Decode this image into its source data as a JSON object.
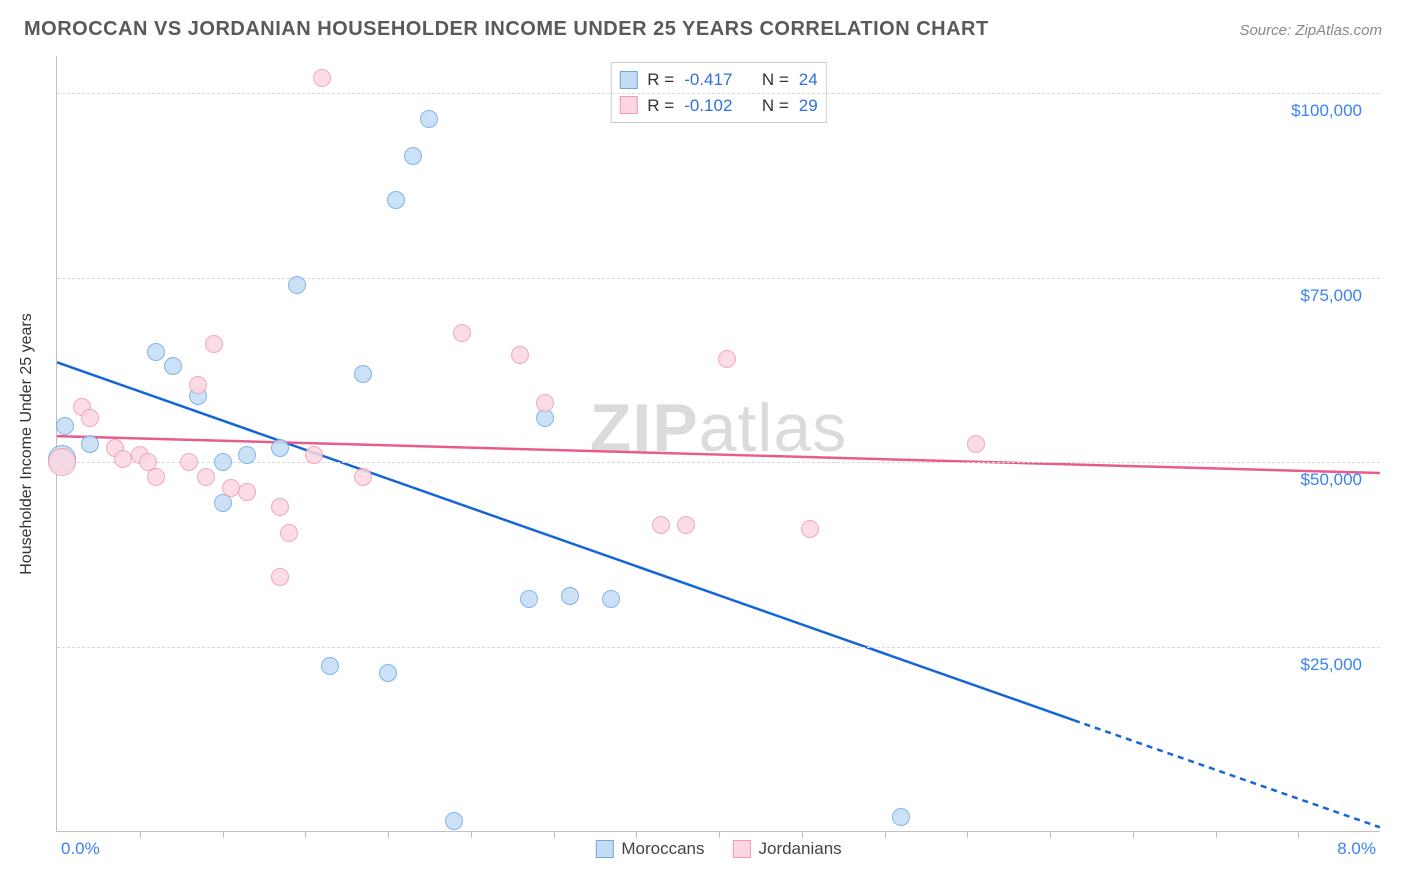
{
  "title": "MOROCCAN VS JORDANIAN HOUSEHOLDER INCOME UNDER 25 YEARS CORRELATION CHART",
  "source": "Source: ZipAtlas.com",
  "y_axis_title": "Householder Income Under 25 years",
  "watermark_bold": "ZIP",
  "watermark_light": "atlas",
  "chart": {
    "type": "scatter",
    "xlim": [
      0,
      8
    ],
    "ylim": [
      0,
      105000
    ],
    "x_ticks": [
      0.5,
      1.0,
      1.5,
      2.0,
      2.5,
      3.0,
      3.5,
      4.0,
      4.5,
      5.0,
      5.5,
      6.0,
      6.5,
      7.0,
      7.5
    ],
    "y_grid": [
      25000,
      50000,
      75000,
      100000
    ],
    "y_tick_labels": [
      "$25,000",
      "$50,000",
      "$75,000",
      "$100,000"
    ],
    "x_min_label": "0.0%",
    "x_max_label": "8.0%",
    "background_color": "#ffffff",
    "grid_color": "#d9d9d9",
    "axis_color": "#bfbfbf",
    "tick_label_color": "#3b82f6",
    "marker_radius": 9,
    "marker_radius_large": 14,
    "series": [
      {
        "name": "Moroccans",
        "fill": "#c3dcf4",
        "stroke": "#6fa8e8",
        "trend_color": "#1466d6",
        "trend_width": 2.5,
        "trend_start": [
          0.0,
          63500
        ],
        "trend_solid_end": [
          6.15,
          15000
        ],
        "trend_dash_end": [
          8.0,
          500
        ],
        "R": "-0.417",
        "N": "24",
        "points": [
          {
            "x": 0.03,
            "y": 50500,
            "r": 14
          },
          {
            "x": 0.05,
            "y": 55000
          },
          {
            "x": 0.2,
            "y": 52500
          },
          {
            "x": 0.6,
            "y": 65000
          },
          {
            "x": 0.7,
            "y": 63000
          },
          {
            "x": 0.85,
            "y": 59000
          },
          {
            "x": 1.0,
            "y": 50000
          },
          {
            "x": 1.0,
            "y": 44500
          },
          {
            "x": 1.15,
            "y": 51000
          },
          {
            "x": 1.35,
            "y": 52000
          },
          {
            "x": 1.45,
            "y": 74000
          },
          {
            "x": 1.65,
            "y": 22500
          },
          {
            "x": 2.0,
            "y": 21500
          },
          {
            "x": 1.85,
            "y": 62000
          },
          {
            "x": 2.05,
            "y": 85500
          },
          {
            "x": 2.15,
            "y": 91500
          },
          {
            "x": 2.25,
            "y": 96500
          },
          {
            "x": 2.4,
            "y": 1500
          },
          {
            "x": 2.95,
            "y": 56000
          },
          {
            "x": 2.85,
            "y": 31500
          },
          {
            "x": 3.1,
            "y": 32000
          },
          {
            "x": 3.35,
            "y": 31500
          },
          {
            "x": 5.1,
            "y": 2000
          }
        ]
      },
      {
        "name": "Jordanians",
        "fill": "#fcd7e1",
        "stroke": "#f19ab3",
        "trend_color": "#e85b8d",
        "trend_width": 2.5,
        "trend_start": [
          0.0,
          53500
        ],
        "trend_solid_end": [
          8.0,
          48500
        ],
        "R": "-0.102",
        "N": "29",
        "points": [
          {
            "x": 0.03,
            "y": 50000,
            "r": 14
          },
          {
            "x": 0.15,
            "y": 57500
          },
          {
            "x": 0.2,
            "y": 56000
          },
          {
            "x": 0.35,
            "y": 52000
          },
          {
            "x": 0.4,
            "y": 50500
          },
          {
            "x": 0.5,
            "y": 51000
          },
          {
            "x": 0.55,
            "y": 50000
          },
          {
            "x": 0.6,
            "y": 48000
          },
          {
            "x": 0.8,
            "y": 50000
          },
          {
            "x": 0.85,
            "y": 60500
          },
          {
            "x": 0.9,
            "y": 48000
          },
          {
            "x": 0.95,
            "y": 66000
          },
          {
            "x": 1.05,
            "y": 46500
          },
          {
            "x": 1.15,
            "y": 46000
          },
          {
            "x": 1.35,
            "y": 44000
          },
          {
            "x": 1.4,
            "y": 40500
          },
          {
            "x": 1.35,
            "y": 34500
          },
          {
            "x": 1.55,
            "y": 51000
          },
          {
            "x": 1.6,
            "y": 102000
          },
          {
            "x": 1.85,
            "y": 48000
          },
          {
            "x": 2.45,
            "y": 67500
          },
          {
            "x": 2.8,
            "y": 64500
          },
          {
            "x": 2.95,
            "y": 58000
          },
          {
            "x": 3.65,
            "y": 41500
          },
          {
            "x": 3.8,
            "y": 41500
          },
          {
            "x": 4.05,
            "y": 64000
          },
          {
            "x": 4.55,
            "y": 41000
          },
          {
            "x": 5.55,
            "y": 52500
          }
        ]
      }
    ],
    "stat_box": {
      "label_R": "R =",
      "label_N": "N ="
    },
    "legend_labels": [
      "Moroccans",
      "Jordanians"
    ]
  }
}
